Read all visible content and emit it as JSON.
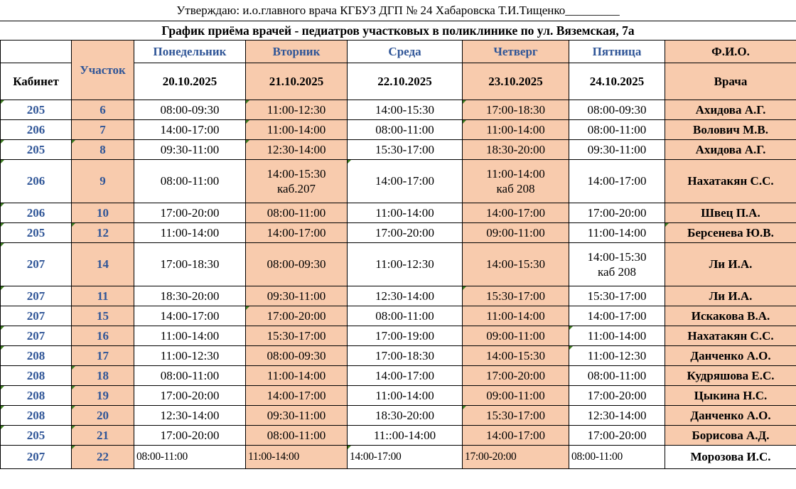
{
  "colors": {
    "salmon": "#F8CBAD",
    "blue": "#2F5597",
    "marker_green": "#3E7D22",
    "border": "#000000"
  },
  "titles": {
    "approval_line": "Утверждаю: и.о.главного врача КГБУЗ ДГП № 24 Хабаровска Т.И.Тищенко_________",
    "schedule_title": "График приёма врачей - педиатров участковых в поликлинике по ул. Вяземская, 7а"
  },
  "table": {
    "columns": [
      {
        "key": "cabinet",
        "top": "",
        "bottom": "Кабинет",
        "salmon": false
      },
      {
        "key": "uchastok",
        "top": "Участок",
        "bottom": "",
        "salmon": true,
        "merged": true
      },
      {
        "key": "monday",
        "top": "Понедельник",
        "bottom": "20.10.2025",
        "salmon": false
      },
      {
        "key": "tuesday",
        "top": "Вторник",
        "bottom": "21.10.2025",
        "salmon": true
      },
      {
        "key": "wednesday",
        "top": "Среда",
        "bottom": "22.10.2025",
        "salmon": false
      },
      {
        "key": "thursday",
        "top": "Четверг",
        "bottom": "23.10.2025",
        "salmon": true
      },
      {
        "key": "friday",
        "top": "Пятница",
        "bottom": "24.10.2025",
        "salmon": false
      },
      {
        "key": "fio",
        "top": "Ф.И.О.",
        "bottom": "Врача",
        "salmon": true
      }
    ],
    "rows": [
      {
        "cabinet": "205",
        "uchastok": "6",
        "times": [
          "08:00-09:30",
          "11:00-12:30",
          "14:00-15:30",
          "17:00-18:30",
          "08:00-09:30"
        ],
        "fio": "Ахидова А.Г."
      },
      {
        "cabinet": "206",
        "uchastok": "7",
        "times": [
          "14:00-17:00",
          "11:00-14:00",
          "08:00-11:00",
          "11:00-14:00",
          "08:00-11:00"
        ],
        "fio": "Волович М.В."
      },
      {
        "cabinet": "205",
        "uchastok": "8",
        "times": [
          "09:30-11:00",
          "12:30-14:00",
          "15:30-17:00",
          "18:30-20:00",
          "09:30-11:00"
        ],
        "fio": "Ахидова А.Г."
      },
      {
        "cabinet": "206",
        "uchastok": "9",
        "times": [
          "08:00-11:00",
          "14:00-15:30\nкаб.207",
          "14:00-17:00",
          "11:00-14:00\nкаб 208",
          "14:00-17:00"
        ],
        "fio": "Нахатакян С.С."
      },
      {
        "cabinet": "206",
        "uchastok": "10",
        "times": [
          "17:00-20:00",
          "08:00-11:00",
          "11:00-14:00",
          "14:00-17:00",
          "17:00-20:00"
        ],
        "fio": "Швец П.А."
      },
      {
        "cabinet": "205",
        "uchastok": "12",
        "times": [
          "11:00-14:00",
          "14:00-17:00",
          "17:00-20:00",
          "09:00-11:00",
          "11:00-14:00"
        ],
        "fio": "Берсенева Ю.В."
      },
      {
        "cabinet": "207",
        "uchastok": "14",
        "times": [
          "17:00-18:30",
          "08:00-09:30",
          "11:00-12:30",
          "14:00-15:30",
          "14:00-15:30\nкаб 208"
        ],
        "fio": "Ли И.А."
      },
      {
        "cabinet": "207",
        "uchastok": "11",
        "times": [
          "18:30-20:00",
          "09:30-11:00",
          "12:30-14:00",
          "15:30-17:00",
          "15:30-17:00"
        ],
        "fio": "Ли И.А."
      },
      {
        "cabinet": "207",
        "uchastok": "15",
        "times": [
          "14:00-17:00",
          "17:00-20:00",
          "08:00-11:00",
          "11:00-14:00",
          "14:00-17:00"
        ],
        "fio": "Искакова В.А."
      },
      {
        "cabinet": "207",
        "uchastok": "16",
        "times": [
          "11:00-14:00",
          "15:30-17:00",
          "17:00-19:00",
          "09:00-11:00",
          "11:00-14:00"
        ],
        "fio": "Нахатакян С.С."
      },
      {
        "cabinet": "208",
        "uchastok": "17",
        "times": [
          "11:00-12:30",
          "08:00-09:30",
          "17:00-18:30",
          "14:00-15:30",
          "11:00-12:30"
        ],
        "fio": "Данченко А.О."
      },
      {
        "cabinet": "208",
        "uchastok": "18",
        "times": [
          "08:00-11:00",
          "11:00-14:00",
          "14:00-17:00",
          "17:00-20:00",
          "08:00-11:00"
        ],
        "fio": "Кудряшова Е.С."
      },
      {
        "cabinet": "208",
        "uchastok": "19",
        "times": [
          "17:00-20:00",
          "14:00-17:00",
          "11:00-14:00",
          "09:00-11:00",
          "17:00-20:00"
        ],
        "fio": "Цыкина Н.С."
      },
      {
        "cabinet": "208",
        "uchastok": "20",
        "times": [
          "12:30-14:00",
          "09:30-11:00",
          "18:30-20:00",
          "15:30-17:00",
          "12:30-14:00"
        ],
        "fio": "Данченко А.О."
      },
      {
        "cabinet": "205",
        "uchastok": "21",
        "times": [
          "17:00-20:00",
          "08:00-11:00",
          "11::00-14:00",
          "14:00-17:00",
          "17:00-20:00"
        ],
        "fio": "Борисова А.Д."
      },
      {
        "cabinet": "207",
        "uchastok": "22",
        "times": [
          "08:00-11:00",
          "11:00-14:00",
          "14:00-17:00",
          "17:00-20:00",
          "08:00-11:00"
        ],
        "fio": "Морозова И.С.",
        "compact": true,
        "fio_plain": true
      }
    ],
    "green_corner_cells": [
      [
        0,
        0
      ],
      [
        0,
        3
      ],
      [
        0,
        5
      ],
      [
        1,
        3
      ],
      [
        1,
        5
      ],
      [
        2,
        0
      ],
      [
        2,
        1
      ],
      [
        2,
        3
      ],
      [
        3,
        0
      ],
      [
        3,
        4
      ],
      [
        4,
        0
      ],
      [
        5,
        0
      ],
      [
        5,
        1
      ],
      [
        5,
        7
      ],
      [
        6,
        0
      ],
      [
        7,
        0
      ],
      [
        7,
        5
      ],
      [
        8,
        3
      ],
      [
        9,
        0
      ],
      [
        9,
        6
      ],
      [
        10,
        0
      ],
      [
        10,
        6
      ],
      [
        11,
        1
      ],
      [
        12,
        0
      ],
      [
        12,
        1
      ],
      [
        13,
        0
      ],
      [
        13,
        1
      ],
      [
        13,
        5
      ],
      [
        14,
        0
      ],
      [
        14,
        1
      ],
      [
        15,
        1
      ],
      [
        15,
        4
      ]
    ]
  }
}
